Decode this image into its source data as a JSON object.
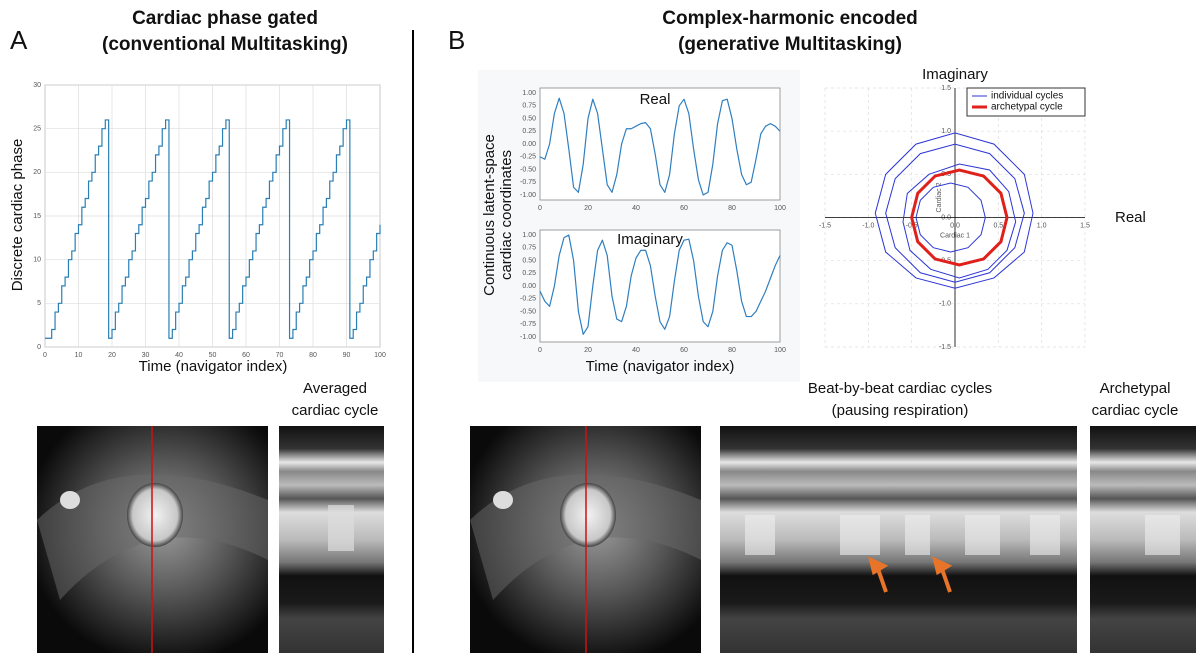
{
  "figure": {
    "panel_a": {
      "letter": "A",
      "title_lines": [
        "Cardiac phase gated",
        "(conventional Multitasking)"
      ],
      "caption_lines": [
        "Averaged",
        "cardiac cycle"
      ]
    },
    "panel_b": {
      "letter": "B",
      "title_lines": [
        "Complex-harmonic encoded",
        "(generative Multitasking)"
      ],
      "latent_ylabel_lines": [
        "Continuous latent-space",
        "cardiac coordinates"
      ],
      "beat_caption_lines": [
        "Beat-by-beat cardiac cycles",
        "(pausing respiration)"
      ],
      "archetype_caption_lines": [
        "Archetypal",
        "cardiac cycle"
      ]
    }
  },
  "chart_data": [
    {
      "type": "step",
      "xlabel": "Time (navigator index)",
      "ylabel": "Discrete cardiac phase",
      "grid": true,
      "xlim": [
        0,
        100
      ],
      "ylim": [
        0,
        30
      ],
      "xticks": [
        0,
        10,
        20,
        30,
        40,
        50,
        60,
        70,
        80,
        90,
        100
      ],
      "yticks": [
        0,
        5,
        10,
        15,
        20,
        25,
        30
      ],
      "x": [
        0,
        1,
        2,
        3,
        4,
        5,
        6,
        7,
        8,
        9,
        10,
        11,
        12,
        13,
        14,
        15,
        16,
        17,
        18,
        19,
        20,
        21,
        22,
        23,
        24,
        25,
        26,
        27,
        28,
        29,
        30,
        31,
        32,
        33,
        34,
        35,
        36,
        37,
        38,
        39,
        40,
        41,
        42,
        43,
        44,
        45,
        46,
        47,
        48,
        49,
        50,
        51,
        52,
        53,
        54,
        55,
        56,
        57,
        58,
        59,
        60,
        61,
        62,
        63,
        64,
        65,
        66,
        67,
        68,
        69,
        70,
        71,
        72,
        73,
        74,
        75,
        76,
        77,
        78,
        79,
        80,
        81,
        82,
        83,
        84,
        85,
        86,
        87,
        88,
        89,
        90,
        91,
        92,
        93,
        94,
        95,
        96,
        97,
        98,
        99,
        100
      ],
      "series": [
        {
          "color": "#2a7fb5",
          "values": [
            1,
            1,
            2,
            4,
            5,
            7,
            8,
            10,
            11,
            13,
            14,
            16,
            17,
            19,
            20,
            22,
            23,
            25,
            26,
            1,
            2,
            4,
            5,
            7,
            8,
            10,
            11,
            13,
            14,
            16,
            17,
            19,
            20,
            22,
            23,
            25,
            26,
            1,
            2,
            4,
            5,
            7,
            8,
            10,
            11,
            13,
            14,
            16,
            17,
            19,
            20,
            22,
            23,
            25,
            26,
            1,
            2,
            4,
            5,
            7,
            8,
            10,
            11,
            13,
            14,
            16,
            17,
            19,
            20,
            22,
            23,
            25,
            26,
            1,
            2,
            4,
            5,
            7,
            8,
            10,
            11,
            13,
            14,
            16,
            17,
            19,
            20,
            22,
            23,
            25,
            26,
            1,
            2,
            4,
            5,
            7,
            8,
            10,
            11,
            13,
            14
          ]
        }
      ]
    },
    {
      "type": "line",
      "title": "Real",
      "grid": false,
      "xlim": [
        0,
        100
      ],
      "ylim": [
        -1.1,
        1.1
      ],
      "xticks": [
        0,
        20,
        40,
        60,
        80,
        100
      ],
      "yticks": [
        {
          "value": -1,
          "label": "-1.00"
        },
        {
          "value": -0.75,
          "label": "-0.75"
        },
        {
          "value": -0.5,
          "label": "-0.50"
        },
        {
          "value": -0.25,
          "label": "-0.25"
        },
        {
          "value": 0,
          "label": "0.00"
        },
        {
          "value": 0.25,
          "label": "0.25"
        },
        {
          "value": 0.5,
          "label": "0.50"
        },
        {
          "value": 0.75,
          "label": "0.75"
        },
        {
          "value": 1,
          "label": "1.00"
        }
      ],
      "x": [
        0,
        2,
        4,
        6,
        8,
        10,
        12,
        14,
        16,
        18,
        20,
        22,
        24,
        26,
        28,
        30,
        32,
        34,
        36,
        38,
        40,
        42,
        44,
        46,
        48,
        50,
        52,
        54,
        56,
        58,
        60,
        62,
        64,
        66,
        68,
        70,
        72,
        74,
        76,
        78,
        80,
        82,
        84,
        86,
        88,
        90,
        92,
        94,
        96,
        98,
        100
      ],
      "series": [
        {
          "color": "#2f7fc0",
          "values": [
            -0.25,
            -0.3,
            0.0,
            0.6,
            0.9,
            0.6,
            -0.1,
            -0.85,
            -0.95,
            -0.4,
            0.5,
            0.88,
            0.6,
            -0.1,
            -0.8,
            -0.95,
            -0.6,
            0.0,
            0.3,
            0.3,
            0.35,
            0.4,
            0.42,
            0.3,
            -0.2,
            -0.8,
            -0.95,
            -0.6,
            0.2,
            0.75,
            0.88,
            0.6,
            -0.1,
            -0.7,
            -1.0,
            -0.95,
            -0.4,
            0.4,
            0.85,
            0.88,
            0.5,
            -0.1,
            -0.6,
            -0.8,
            -0.75,
            -0.3,
            0.2,
            0.35,
            0.4,
            0.35,
            0.25
          ]
        }
      ]
    },
    {
      "type": "line",
      "title": "Imaginary",
      "xlabel": "Time (navigator index)",
      "grid": false,
      "xlim": [
        0,
        100
      ],
      "ylim": [
        -1.1,
        1.1
      ],
      "xticks": [
        0,
        20,
        40,
        60,
        80,
        100
      ],
      "yticks": [
        {
          "value": -1,
          "label": "-1.00"
        },
        {
          "value": -0.75,
          "label": "-0.75"
        },
        {
          "value": -0.5,
          "label": "-0.50"
        },
        {
          "value": -0.25,
          "label": "-0.25"
        },
        {
          "value": 0,
          "label": "0.00"
        },
        {
          "value": 0.25,
          "label": "0.25"
        },
        {
          "value": 0.5,
          "label": "0.50"
        },
        {
          "value": 0.75,
          "label": "0.75"
        },
        {
          "value": 1,
          "label": "1.00"
        }
      ],
      "x": [
        0,
        2,
        4,
        6,
        8,
        10,
        12,
        14,
        16,
        18,
        20,
        22,
        24,
        26,
        28,
        30,
        32,
        34,
        36,
        38,
        40,
        42,
        44,
        46,
        48,
        50,
        52,
        54,
        56,
        58,
        60,
        62,
        64,
        66,
        68,
        70,
        72,
        74,
        76,
        78,
        80,
        82,
        84,
        86,
        88,
        90,
        92,
        94,
        96,
        98,
        100
      ],
      "series": [
        {
          "color": "#2f7fc0",
          "values": [
            -0.1,
            -0.3,
            -0.4,
            0.0,
            0.6,
            0.95,
            1.0,
            0.5,
            -0.5,
            -0.95,
            -0.8,
            0.0,
            0.7,
            0.9,
            0.6,
            -0.2,
            -0.65,
            -0.7,
            -0.4,
            0.2,
            0.55,
            0.7,
            0.7,
            0.4,
            -0.2,
            -0.7,
            -0.85,
            -0.6,
            0.1,
            0.7,
            0.9,
            0.92,
            0.5,
            -0.2,
            -0.7,
            -0.8,
            -0.5,
            0.2,
            0.7,
            0.85,
            0.8,
            0.3,
            -0.3,
            -0.6,
            -0.6,
            -0.5,
            -0.3,
            -0.1,
            0.15,
            0.4,
            0.6
          ]
        }
      ]
    },
    {
      "type": "loops",
      "xlabel": "Real",
      "ylabel": "Imaginary",
      "axis_titles": [
        "Cardiac 1",
        "Cardiac 2"
      ],
      "grid": true,
      "legend": "upper right",
      "xlim": [
        -1.5,
        1.5
      ],
      "ylim": [
        -1.5,
        1.5
      ],
      "xticks": [
        -1.5,
        {
          "value": -1,
          "label": "-1.0"
        },
        -0.5,
        {
          "value": 0,
          "label": "0.0"
        },
        0.5,
        {
          "value": 1,
          "label": "1.0"
        },
        1.5
      ],
      "yticks": [
        -1.5,
        {
          "value": -1,
          "label": "-1.0"
        },
        -0.5,
        {
          "value": 0,
          "label": "0.0"
        },
        0.5,
        {
          "value": 1,
          "label": "1.0"
        },
        1.5
      ],
      "series": [
        {
          "name": "individual cycles",
          "color": "#2b35d6",
          "x": [
            0.8,
            0.69,
            0.4,
            0,
            -0.4,
            -0.69,
            -0.8,
            -0.69,
            -0.4,
            0,
            0.4,
            0.69
          ],
          "y": [
            0.05,
            0.45,
            0.74,
            0.85,
            0.74,
            0.45,
            0.05,
            -0.35,
            -0.64,
            -0.75,
            -0.64,
            -0.35
          ]
        },
        {
          "color": "#2b35d6",
          "x": [
            0.7,
            0.62,
            0.4,
            0.05,
            -0.3,
            -0.55,
            -0.6,
            -0.52,
            -0.28,
            0.05,
            0.38,
            0.6
          ],
          "y": [
            -0.05,
            0.3,
            0.55,
            0.62,
            0.5,
            0.28,
            -0.05,
            -0.38,
            -0.6,
            -0.7,
            -0.6,
            -0.38
          ]
        },
        {
          "color": "#2b35d6",
          "x": [
            0.35,
            0.3,
            0.15,
            -0.05,
            -0.25,
            -0.4,
            -0.45,
            -0.4,
            -0.25,
            -0.05,
            0.15,
            0.3
          ],
          "y": [
            0,
            0.2,
            0.35,
            0.4,
            0.35,
            0.2,
            0,
            -0.2,
            -0.35,
            -0.4,
            -0.35,
            -0.2
          ]
        },
        {
          "color": "#2b35d6",
          "x": [
            0.9,
            0.8,
            0.45,
            0,
            -0.45,
            -0.8,
            -0.92,
            -0.8,
            -0.45,
            0,
            0.45,
            0.8
          ],
          "y": [
            0.05,
            0.5,
            0.85,
            0.98,
            0.85,
            0.5,
            0.05,
            -0.4,
            -0.7,
            -0.82,
            -0.7,
            -0.4
          ]
        },
        {
          "name": "archetypal cycle",
          "color": "#e0201b",
          "x": [
            0.6,
            0.53,
            0.33,
            0.05,
            -0.23,
            -0.43,
            -0.5,
            -0.43,
            -0.23,
            0.05,
            0.33,
            0.53
          ],
          "y": [
            0,
            0.28,
            0.48,
            0.55,
            0.48,
            0.28,
            0,
            -0.28,
            -0.48,
            -0.55,
            -0.48,
            -0.28
          ]
        }
      ]
    }
  ]
}
